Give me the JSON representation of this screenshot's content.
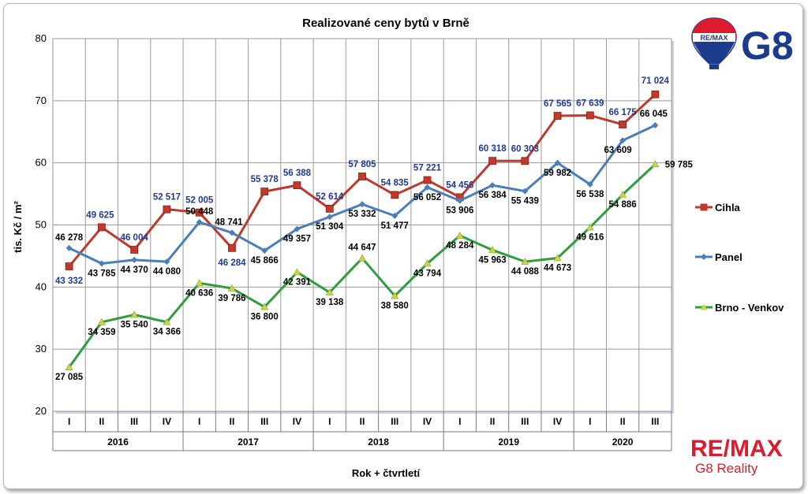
{
  "chart_data": {
    "type": "line",
    "title": "Realizované ceny bytů v Brně",
    "ylabel": "tis. Kč / m²",
    "xlabel": "Rok + čtvrtletí",
    "ylim": [
      20,
      80
    ],
    "yticks": [
      "20",
      "30",
      "40",
      "50",
      "60",
      "70",
      "80"
    ],
    "categories": [
      "I",
      "II",
      "III",
      "IV",
      "I",
      "II",
      "III",
      "IV",
      "I",
      "II",
      "III",
      "IV",
      "I",
      "II",
      "III",
      "IV",
      "I",
      "II",
      "III"
    ],
    "years": [
      {
        "label": "2016",
        "count": 4
      },
      {
        "label": "2017",
        "count": 4
      },
      {
        "label": "2018",
        "count": 4
      },
      {
        "label": "2019",
        "count": 4
      },
      {
        "label": "2020",
        "count": 3
      }
    ],
    "grid": true,
    "legend_position": "right",
    "series": [
      {
        "name": "Cihla",
        "color": "#c0392b",
        "label_color": "#1f3a93",
        "marker": "square",
        "values": [
          43.332,
          49.625,
          46.004,
          52.517,
          52.005,
          46.284,
          55.378,
          56.388,
          52.614,
          57.805,
          54.835,
          57.221,
          54.456,
          60.318,
          60.303,
          67.565,
          67.639,
          66.175,
          71.024
        ],
        "labels": [
          "43 332",
          "49 625",
          "46 004",
          "52 517",
          "52 005",
          "46 284",
          "55 378",
          "56 388",
          "52 614",
          "57 805",
          "54 835",
          "57 221",
          "54 456",
          "60 318",
          "60 303",
          "67 565",
          "67 639",
          "66 175",
          "71 024"
        ]
      },
      {
        "name": "Panel",
        "color": "#4a7ebb",
        "label_color": "#000000",
        "marker": "diamond",
        "values": [
          46.278,
          43.785,
          44.37,
          44.08,
          50.448,
          48.741,
          45.866,
          49.357,
          51.304,
          53.332,
          51.477,
          56.052,
          53.906,
          56.384,
          55.439,
          59.982,
          56.538,
          63.609,
          66.045
        ],
        "labels": [
          "46 278",
          "43 785",
          "44 370",
          "44 080",
          "50 448",
          "48 741",
          "45 866",
          "49 357",
          "51 304",
          "53 332",
          "51 477",
          "56 052",
          "53 906",
          "56 384",
          "55 439",
          "59 982",
          "56 538",
          "63 609",
          "66 045"
        ]
      },
      {
        "name": "Brno - Venkov",
        "color": "#2e9e3e",
        "label_color": "#000000",
        "marker": "triangle",
        "values": [
          27.085,
          34.359,
          35.54,
          34.366,
          40.636,
          39.786,
          36.8,
          42.391,
          39.138,
          44.647,
          38.58,
          43.794,
          48.284,
          45.963,
          44.088,
          44.673,
          49.616,
          54.886,
          59.785
        ],
        "labels": [
          "27 085",
          "34 359",
          "35 540",
          "34 366",
          "40 636",
          "39 786",
          "36 800",
          "42 391",
          "39 138",
          "44 647",
          "38 580",
          "43 794",
          "48 284",
          "45 963",
          "44 088",
          "44 673",
          "49 616",
          "54 886",
          "59 785"
        ]
      }
    ]
  },
  "branding": {
    "top_logo_balloon_text": "RE/MAX",
    "top_logo_text": "G8",
    "bottom_logo_main": "RE/MAX",
    "bottom_logo_sub": "G8 Reality",
    "brand_red": "#dc1c2e",
    "brand_blue": "#1b3c8c"
  }
}
